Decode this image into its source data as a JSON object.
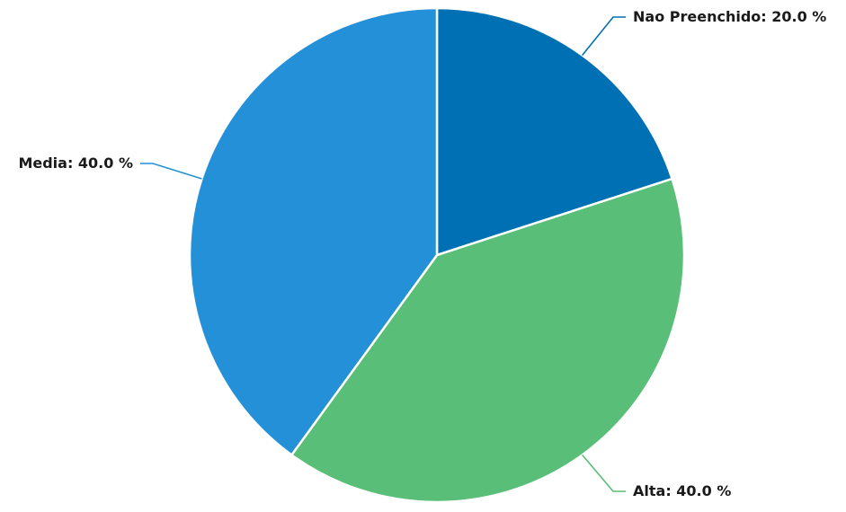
{
  "chart_data": {
    "type": "pie",
    "title": "",
    "slices": [
      {
        "label": "Nao Preenchido",
        "value": 20.0,
        "display": "Nao Preenchido: 20.0 %",
        "color": "#0070b4"
      },
      {
        "label": "Alta",
        "value": 40.0,
        "display": "Alta: 40.0 %",
        "color": "#58be78"
      },
      {
        "label": "Media",
        "value": 40.0,
        "display": "Media: 40.0 %",
        "color": "#2490d8"
      }
    ],
    "start_angle_deg": 0,
    "direction": "clockwise",
    "legend": "none",
    "data_labels": "outside-with-connectors"
  }
}
